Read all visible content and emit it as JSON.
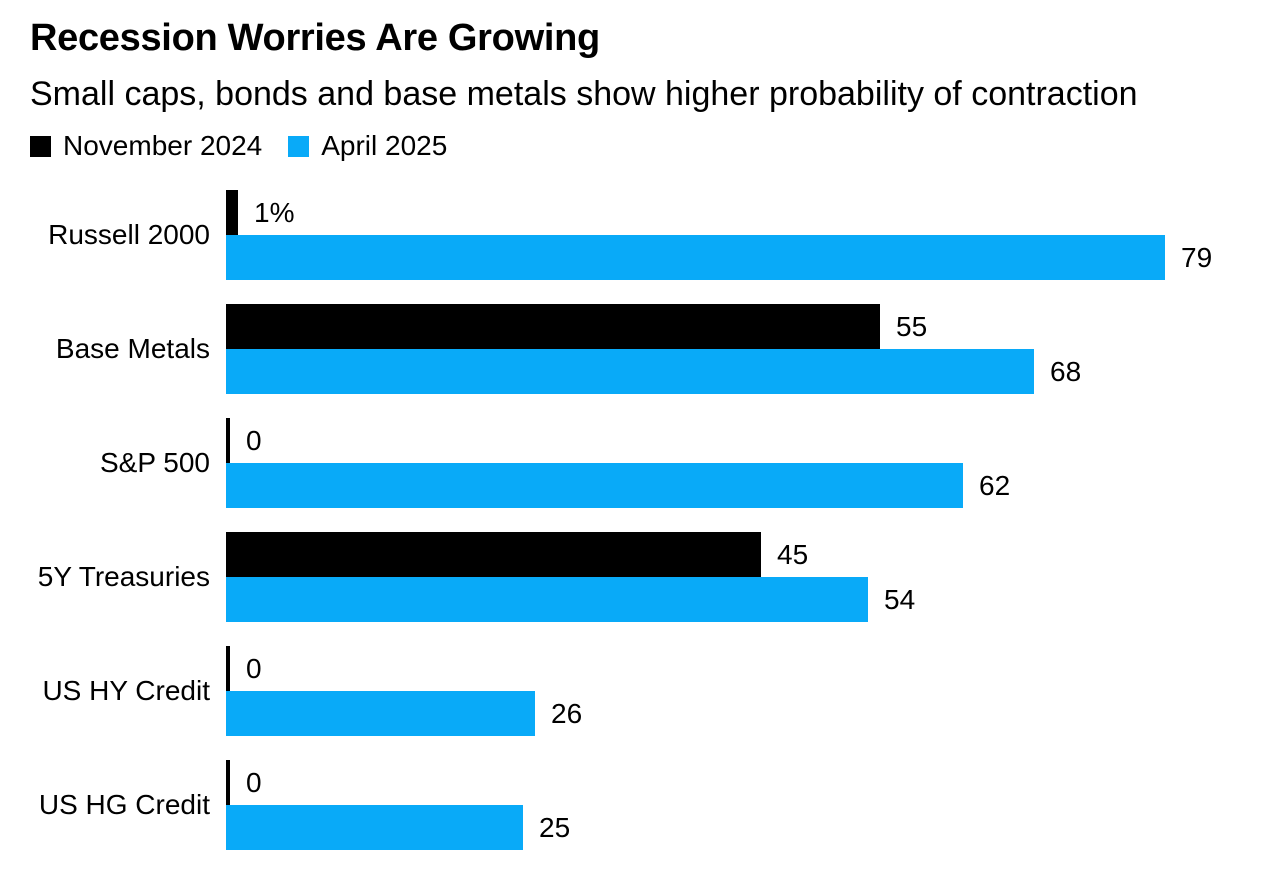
{
  "header": {
    "title": "Recession Worries Are Growing",
    "subtitle": "Small caps, bonds and base metals show higher probability of contraction"
  },
  "legend": [
    {
      "label": "November 2024",
      "color": "#000000"
    },
    {
      "label": "April 2025",
      "color": "#09aaf8"
    }
  ],
  "colors": {
    "background": "#ffffff",
    "text": "#000000",
    "november_black": "#000000",
    "april_blue": "#09aaf8"
  },
  "chart_data": {
    "type": "bar",
    "orientation": "horizontal",
    "title": "Recession Worries Are Growing",
    "subtitle": "Small caps, bonds and base metals show higher probability of contraction",
    "unit": "% probability of contraction",
    "categories": [
      "Russell 2000",
      "Base Metals",
      "S&P 500",
      "5Y Treasuries",
      "US HY Credit",
      "US HG Credit"
    ],
    "series": [
      {
        "name": "November 2024",
        "color": "#000000",
        "values": [
          1,
          55,
          0,
          45,
          0,
          0
        ]
      },
      {
        "name": "April 2025",
        "color": "#09aaf8",
        "values": [
          79,
          68,
          62,
          54,
          26,
          25
        ]
      }
    ],
    "value_labels": [
      [
        "1%",
        "55",
        "0",
        "45",
        "0",
        "0"
      ],
      [
        "79",
        "68",
        "62",
        "54",
        "26",
        "25"
      ]
    ],
    "xlim": [
      0,
      85
    ],
    "grid": false,
    "axis_visible": false,
    "zero_shown_as": "thin black tick",
    "legend_position": "top-left",
    "value_label_position": "right-of-bar"
  }
}
